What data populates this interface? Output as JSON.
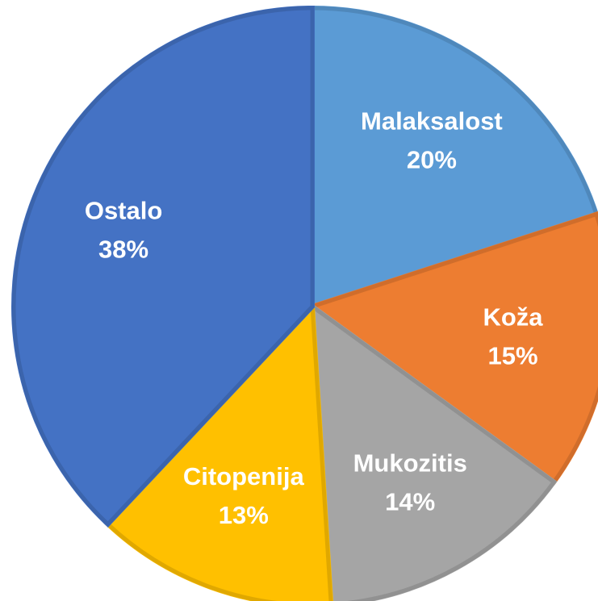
{
  "chart_data": {
    "type": "pie",
    "categories": [
      "Malaksalost",
      "Koža",
      "Mukozitis",
      "Citopenija",
      "Ostalo"
    ],
    "values": [
      20,
      15,
      14,
      13,
      38
    ],
    "value_labels": [
      "20%",
      "15%",
      "14%",
      "13%",
      "38%"
    ],
    "colors": [
      "#5b9bd5",
      "#ed7d31",
      "#a5a5a5",
      "#ffc000",
      "#4472c4"
    ]
  }
}
